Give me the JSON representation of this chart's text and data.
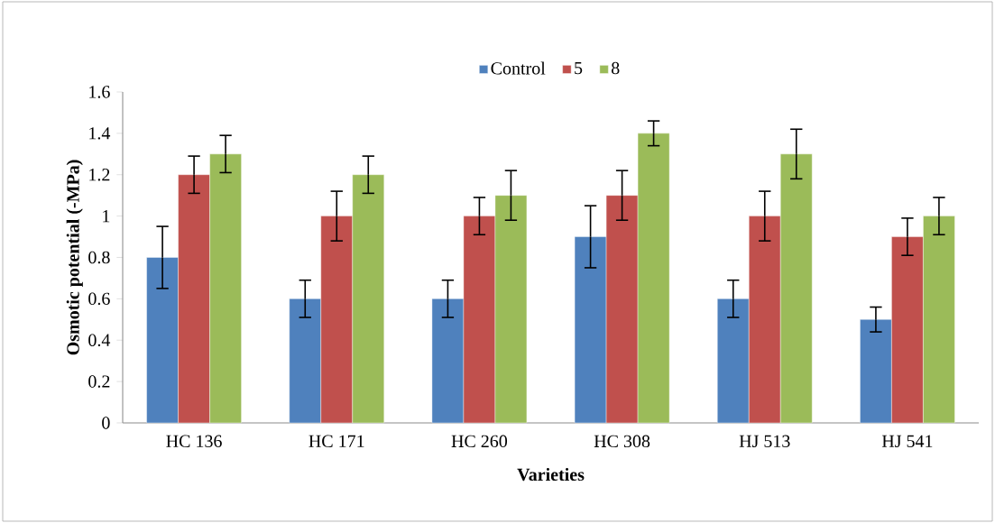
{
  "chart_data": {
    "type": "bar",
    "xlabel": "Varieties",
    "ylabel": "Osmotic potential (-MPa)",
    "categories": [
      "HC 136",
      "HC 171",
      "HC 260",
      "HC 308",
      "HJ 513",
      "HJ 541"
    ],
    "series": [
      {
        "name": "Control",
        "color": "#4f81bd",
        "values": [
          0.8,
          0.6,
          0.6,
          0.9,
          0.6,
          0.5
        ],
        "errors": [
          0.15,
          0.09,
          0.09,
          0.15,
          0.09,
          0.06
        ]
      },
      {
        "name": "5",
        "color": "#c0504d",
        "values": [
          1.2,
          1.0,
          1.0,
          1.1,
          1.0,
          0.9
        ],
        "errors": [
          0.09,
          0.12,
          0.09,
          0.12,
          0.12,
          0.09
        ]
      },
      {
        "name": "8",
        "color": "#9bbb59",
        "values": [
          1.3,
          1.2,
          1.1,
          1.4,
          1.3,
          1.0
        ],
        "errors": [
          0.09,
          0.09,
          0.12,
          0.06,
          0.12,
          0.09
        ]
      }
    ],
    "ylim": [
      0,
      1.6
    ],
    "yticks": [
      0,
      0.2,
      0.4,
      0.6,
      0.8,
      1,
      1.2,
      1.4,
      1.6
    ],
    "grid": false,
    "legend": "top"
  }
}
